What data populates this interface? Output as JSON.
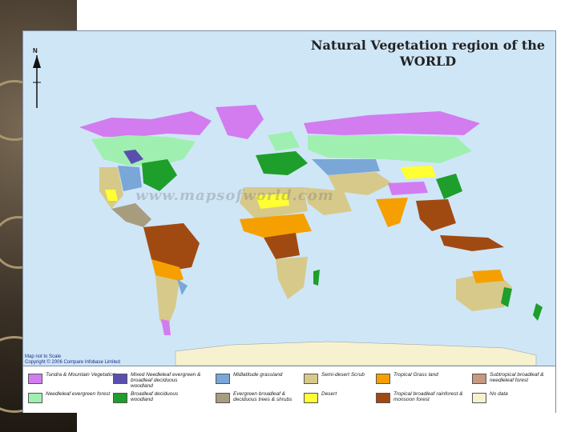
{
  "title": "Natural Vegetation region of the WORLD",
  "north_label": "N",
  "watermark": "www.mapsofworld.com",
  "notes": {
    "scale": "Map not to Scale",
    "copyright": "Copyright © 2006 Compare Infobase Limited"
  },
  "colors": {
    "ocean": "#cfe6f7",
    "tundra": "#d27cf0",
    "needleleaf": "#9ff0b0",
    "mixed": "#5a4fb0",
    "broadleaf": "#1e9e2a",
    "midlatitude": "#7aa7d8",
    "evergreen_shrubs": "#a89c7e",
    "semidesert": "#d7c98a",
    "desert": "#ffff33",
    "tropical_grass": "#f5a000",
    "tropical_rainforest": "#a04a12",
    "subtropical": "#c59a80",
    "nodata": "#f6f2cf"
  },
  "legend": [
    {
      "label": "Tundra & Mountain Vegetation",
      "color": "#d27cf0"
    },
    {
      "label": "Needleleaf evergreen forest",
      "color": "#9ff0b0"
    },
    {
      "label": "Mixed Needleleaf evergreen & broadleaf deciduous woodland",
      "color": "#5a4fb0"
    },
    {
      "label": "Broadleaf deciduous woodland",
      "color": "#1e9e2a"
    },
    {
      "label": "Midlatitude grassland",
      "color": "#7aa7d8"
    },
    {
      "label": "Evergreen broadleaf & deciduous trees & shrubs",
      "color": "#a89c7e"
    },
    {
      "label": "Semi-desert Scrub",
      "color": "#d7c98a"
    },
    {
      "label": "Desert",
      "color": "#ffff33"
    },
    {
      "label": "Tropical Grass land",
      "color": "#f5a000"
    },
    {
      "label": "Tropical broadleaf rainforest & monsoon forest",
      "color": "#a04a12"
    },
    {
      "label": "Subtropical broadleaf & needleleaf forest",
      "color": "#c59a80"
    },
    {
      "label": "No data",
      "color": "#f6f2cf"
    }
  ]
}
